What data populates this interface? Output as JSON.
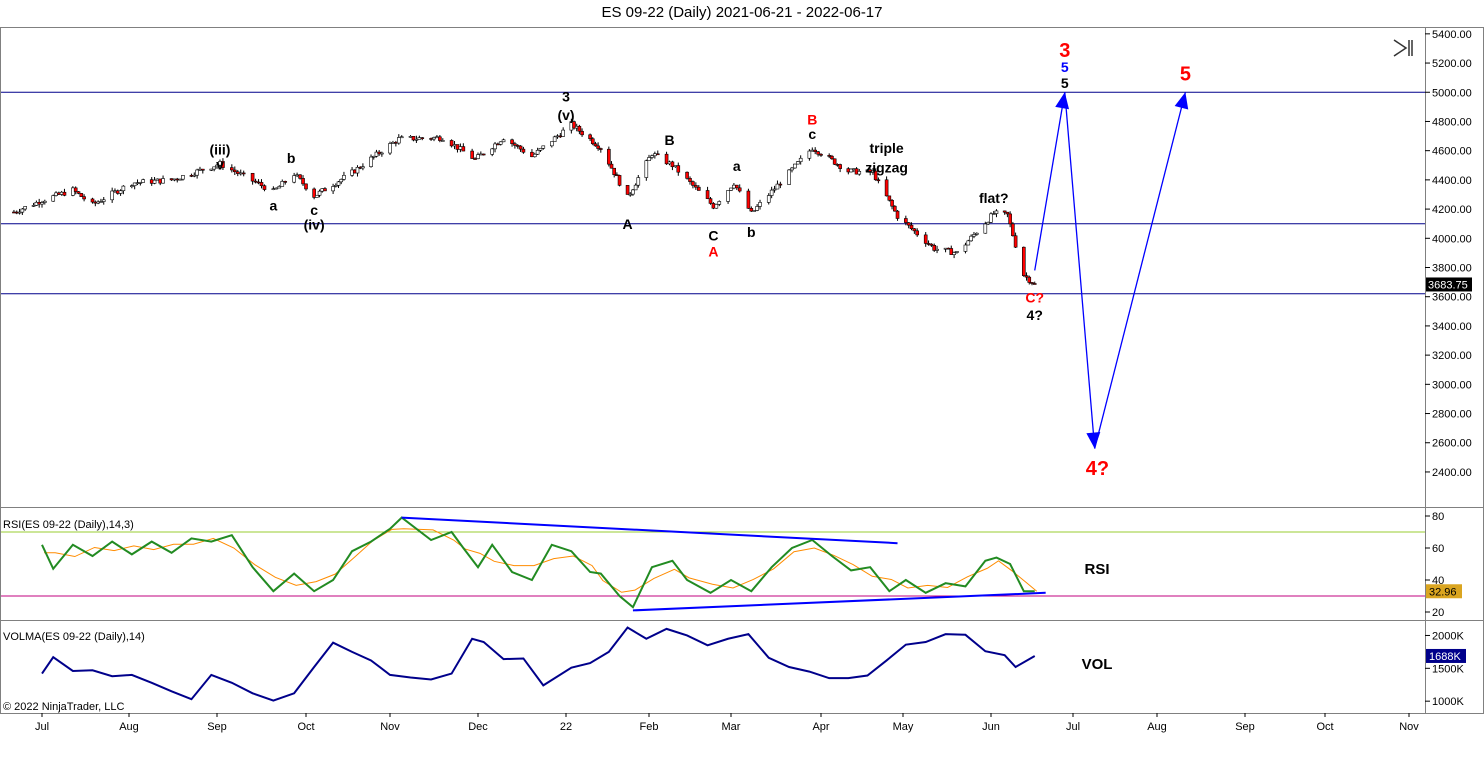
{
  "title": "ES 09-22 (Daily)  2021-06-21 - 2022-06-17",
  "copyright": "© 2022 NinjaTrader, LLC",
  "colors": {
    "candle_up": "#000000",
    "candle_down_fill": "#ff0000",
    "horizontal_line": "#00008b",
    "projection": "#0000ff",
    "rsi_line": "#228b22",
    "rsi_signal": "#ff8c00",
    "rsi_upper": "#9acd32",
    "rsi_lower": "#c0007f",
    "volma_line": "#00008b",
    "price_badge": "#000000",
    "rsi_badge": "#daa520",
    "vol_badge": "#00008b",
    "label_black": "#000000",
    "label_red": "#ff0000",
    "label_blue": "#0000ff"
  },
  "x_axis": {
    "labels": [
      "Jul",
      "Aug",
      "Sep",
      "Oct",
      "Nov",
      "Dec",
      "22",
      "Feb",
      "Mar",
      "Apr",
      "May",
      "Jun",
      "Jul",
      "Aug",
      "Sep",
      "Oct",
      "Nov"
    ]
  },
  "chart_data": [
    {
      "type": "candlestick",
      "title": "ES 09-22 (Daily)  2021-06-21 - 2022-06-17",
      "y_ticks": [
        "2400.00",
        "2600.00",
        "2800.00",
        "3000.00",
        "3200.00",
        "3400.00",
        "3600.00",
        "3800.00",
        "4000.00",
        "4200.00",
        "4400.00",
        "4600.00",
        "4800.00",
        "5000.00",
        "5200.00",
        "5400.00"
      ],
      "ylim": [
        2160,
        5440
      ],
      "last_price": "3683.75",
      "horizontal_lines": [
        5000,
        4100,
        3620
      ],
      "close_path": [
        [
          "2021-06-21",
          4180
        ],
        [
          "2021-07-01",
          4260
        ],
        [
          "2021-07-12",
          4330
        ],
        [
          "2021-07-19",
          4230
        ],
        [
          "2021-08-02",
          4380
        ],
        [
          "2021-08-16",
          4400
        ],
        [
          "2021-09-02",
          4510
        ],
        [
          "2021-09-20",
          4320
        ],
        [
          "2021-09-27",
          4440
        ],
        [
          "2021-10-04",
          4290
        ],
        [
          "2021-10-18",
          4450
        ],
        [
          "2021-11-04",
          4680
        ],
        [
          "2021-11-19",
          4690
        ],
        [
          "2021-11-30",
          4540
        ],
        [
          "2021-12-10",
          4690
        ],
        [
          "2021-12-20",
          4560
        ],
        [
          "2022-01-03",
          4780
        ],
        [
          "2022-01-14",
          4620
        ],
        [
          "2022-01-24",
          4280
        ],
        [
          "2022-02-02",
          4580
        ],
        [
          "2022-02-09",
          4500
        ],
        [
          "2022-02-23",
          4220
        ],
        [
          "2022-03-02",
          4380
        ],
        [
          "2022-03-08",
          4170
        ],
        [
          "2022-03-29",
          4620
        ],
        [
          "2022-04-11",
          4460
        ],
        [
          "2022-04-20",
          4450
        ],
        [
          "2022-04-29",
          4150
        ],
        [
          "2022-05-12",
          3930
        ],
        [
          "2022-05-20",
          3900
        ],
        [
          "2022-06-02",
          4170
        ],
        [
          "2022-06-07",
          4160
        ],
        [
          "2022-06-13",
          3750
        ],
        [
          "2022-06-17",
          3684
        ]
      ],
      "projection_path": [
        [
          "2022-06-17",
          3780
        ],
        [
          "2022-06-28",
          5000
        ],
        [
          "2022-07-09",
          2560
        ],
        [
          "2022-08-11",
          5000
        ]
      ],
      "annotations": [
        {
          "text": "(iii)",
          "x": "2021-09-02",
          "y": 4575,
          "color": "label_black"
        },
        {
          "text": "v",
          "x": "2021-09-02",
          "y": 4470,
          "color": "label_black"
        },
        {
          "text": "a",
          "x": "2021-09-20",
          "y": 4190,
          "color": "label_black"
        },
        {
          "text": "b",
          "x": "2021-09-26",
          "y": 4515,
          "color": "label_black"
        },
        {
          "text": "c",
          "x": "2021-10-04",
          "y": 4160,
          "color": "label_black"
        },
        {
          "text": "(iv)",
          "x": "2021-10-04",
          "y": 4060,
          "color": "label_black"
        },
        {
          "text": "3",
          "x": "2022-01-01",
          "y": 4935,
          "color": "label_black"
        },
        {
          "text": "(v)",
          "x": "2022-01-01",
          "y": 4810,
          "color": "label_black"
        },
        {
          "text": "A",
          "x": "2022-01-24",
          "y": 4065,
          "color": "label_black"
        },
        {
          "text": "B",
          "x": "2022-02-08",
          "y": 4640,
          "color": "label_black"
        },
        {
          "text": "a",
          "x": "2022-03-03",
          "y": 4460,
          "color": "label_black"
        },
        {
          "text": "C",
          "x": "2022-02-23",
          "y": 3985,
          "color": "label_black"
        },
        {
          "text": "A",
          "x": "2022-02-23",
          "y": 3875,
          "color": "label_red"
        },
        {
          "text": "b",
          "x": "2022-03-08",
          "y": 4010,
          "color": "label_black"
        },
        {
          "text": "B",
          "x": "2022-03-29",
          "y": 4780,
          "color": "label_red"
        },
        {
          "text": "c",
          "x": "2022-03-29",
          "y": 4680,
          "color": "label_black"
        },
        {
          "text": "triple",
          "x": "2022-04-25",
          "y": 4585,
          "color": "label_black"
        },
        {
          "text": "zigzag",
          "x": "2022-04-25",
          "y": 4450,
          "color": "label_black"
        },
        {
          "text": "flat?",
          "x": "2022-06-02",
          "y": 4240,
          "color": "label_black"
        },
        {
          "text": "C?",
          "x": "2022-06-17",
          "y": 3560,
          "color": "label_red"
        },
        {
          "text": "4?",
          "x": "2022-06-17",
          "y": 3440,
          "color": "label_black"
        },
        {
          "text": "3",
          "x": "2022-06-28",
          "y": 5240,
          "color": "label_red"
        },
        {
          "text": "5",
          "x": "2022-06-28",
          "y": 5140,
          "color": "label_blue"
        },
        {
          "text": "5",
          "x": "2022-06-28",
          "y": 5030,
          "color": "label_black"
        },
        {
          "text": "5",
          "x": "2022-08-11",
          "y": 5080,
          "color": "label_red"
        },
        {
          "text": "4?",
          "x": "2022-07-10",
          "y": 2380,
          "color": "label_red"
        }
      ]
    },
    {
      "type": "line",
      "title": "RSI(ES 09-22 (Daily),14,3)",
      "panel_label": "RSI",
      "y_ticks": [
        "20",
        "40",
        "60",
        "80"
      ],
      "ylim": [
        15,
        85
      ],
      "last_value": "32.96",
      "upper_line": 70,
      "lower_line": 30,
      "series": [
        {
          "values": [
            [
              "2021-07-01",
              62
            ],
            [
              "2021-07-05",
              47
            ],
            [
              "2021-07-12",
              62
            ],
            [
              "2021-07-19",
              55
            ],
            [
              "2021-07-26",
              64
            ],
            [
              "2021-08-02",
              56
            ],
            [
              "2021-08-09",
              64
            ],
            [
              "2021-08-16",
              57
            ],
            [
              "2021-08-23",
              66
            ],
            [
              "2021-08-30",
              64
            ],
            [
              "2021-09-06",
              68
            ],
            [
              "2021-09-13",
              48
            ],
            [
              "2021-09-20",
              33
            ],
            [
              "2021-09-27",
              44
            ],
            [
              "2021-10-04",
              33
            ],
            [
              "2021-10-11",
              40
            ],
            [
              "2021-10-18",
              58
            ],
            [
              "2021-10-25",
              64
            ],
            [
              "2021-11-01",
              72
            ],
            [
              "2021-11-05",
              79
            ],
            [
              "2021-11-15",
              65
            ],
            [
              "2021-11-22",
              70
            ],
            [
              "2021-11-26",
              60
            ],
            [
              "2021-12-01",
              48
            ],
            [
              "2021-12-06",
              62
            ],
            [
              "2021-12-13",
              45
            ],
            [
              "2021-12-20",
              40
            ],
            [
              "2021-12-27",
              62
            ],
            [
              "2022-01-03",
              58
            ],
            [
              "2022-01-10",
              45
            ],
            [
              "2022-01-14",
              44
            ],
            [
              "2022-01-21",
              30
            ],
            [
              "2022-01-26",
              23
            ],
            [
              "2022-02-02",
              48
            ],
            [
              "2022-02-09",
              52
            ],
            [
              "2022-02-14",
              40
            ],
            [
              "2022-02-22",
              32
            ],
            [
              "2022-03-01",
              40
            ],
            [
              "2022-03-08",
              33
            ],
            [
              "2022-03-15",
              48
            ],
            [
              "2022-03-22",
              60
            ],
            [
              "2022-03-29",
              65
            ],
            [
              "2022-04-05",
              55
            ],
            [
              "2022-04-12",
              46
            ],
            [
              "2022-04-19",
              48
            ],
            [
              "2022-04-26",
              33
            ],
            [
              "2022-05-02",
              40
            ],
            [
              "2022-05-09",
              32
            ],
            [
              "2022-05-16",
              38
            ],
            [
              "2022-05-23",
              36
            ],
            [
              "2022-05-30",
              52
            ],
            [
              "2022-06-03",
              54
            ],
            [
              "2022-06-08",
              50
            ],
            [
              "2022-06-13",
              33
            ],
            [
              "2022-06-17",
              33
            ]
          ]
        }
      ],
      "trendlines": [
        [
          [
            "2021-11-05",
            79
          ],
          [
            "2022-04-29",
            63
          ]
        ],
        [
          [
            "2022-01-26",
            21
          ],
          [
            "2022-06-21",
            32
          ]
        ]
      ]
    },
    {
      "type": "line",
      "title": "VOLMA(ES 09-22 (Daily),14)",
      "panel_label": "VOL",
      "y_ticks": [
        "1000K",
        "1500K",
        "2000K"
      ],
      "ylim": [
        820000,
        2220000
      ],
      "last_value": "1688K",
      "series": [
        {
          "values": [
            [
              "2021-07-01",
              1420000
            ],
            [
              "2021-07-05",
              1670000
            ],
            [
              "2021-07-12",
              1460000
            ],
            [
              "2021-07-19",
              1470000
            ],
            [
              "2021-07-26",
              1380000
            ],
            [
              "2021-08-02",
              1400000
            ],
            [
              "2021-08-09",
              1280000
            ],
            [
              "2021-08-16",
              1150000
            ],
            [
              "2021-08-23",
              1030000
            ],
            [
              "2021-08-30",
              1400000
            ],
            [
              "2021-09-06",
              1280000
            ],
            [
              "2021-09-13",
              1120000
            ],
            [
              "2021-09-20",
              1010000
            ],
            [
              "2021-09-27",
              1120000
            ],
            [
              "2021-10-04",
              1520000
            ],
            [
              "2021-10-11",
              1890000
            ],
            [
              "2021-10-18",
              1750000
            ],
            [
              "2021-10-25",
              1620000
            ],
            [
              "2021-11-01",
              1400000
            ],
            [
              "2021-11-08",
              1360000
            ],
            [
              "2021-11-15",
              1330000
            ],
            [
              "2021-11-22",
              1420000
            ],
            [
              "2021-11-29",
              1950000
            ],
            [
              "2021-12-03",
              1900000
            ],
            [
              "2021-12-10",
              1640000
            ],
            [
              "2021-12-17",
              1650000
            ],
            [
              "2021-12-24",
              1240000
            ],
            [
              "2022-01-03",
              1510000
            ],
            [
              "2022-01-10",
              1580000
            ],
            [
              "2022-01-17",
              1750000
            ],
            [
              "2022-01-24",
              2120000
            ],
            [
              "2022-01-31",
              1950000
            ],
            [
              "2022-02-07",
              2100000
            ],
            [
              "2022-02-14",
              2000000
            ],
            [
              "2022-02-21",
              1850000
            ],
            [
              "2022-02-28",
              1950000
            ],
            [
              "2022-03-07",
              2020000
            ],
            [
              "2022-03-14",
              1660000
            ],
            [
              "2022-03-21",
              1520000
            ],
            [
              "2022-03-28",
              1450000
            ],
            [
              "2022-04-04",
              1350000
            ],
            [
              "2022-04-11",
              1350000
            ],
            [
              "2022-04-18",
              1390000
            ],
            [
              "2022-04-25",
              1620000
            ],
            [
              "2022-05-02",
              1860000
            ],
            [
              "2022-05-09",
              1900000
            ],
            [
              "2022-05-16",
              2020000
            ],
            [
              "2022-05-23",
              2010000
            ],
            [
              "2022-05-30",
              1760000
            ],
            [
              "2022-06-06",
              1700000
            ],
            [
              "2022-06-10",
              1520000
            ],
            [
              "2022-06-17",
              1688000
            ]
          ]
        }
      ]
    }
  ]
}
